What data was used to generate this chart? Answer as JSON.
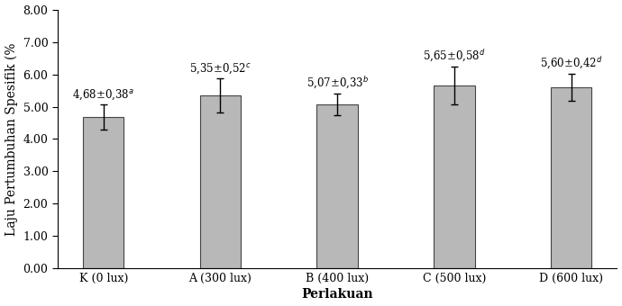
{
  "categories": [
    "K (0 lux)",
    "A (300 lux)",
    "B (400 lux)",
    "C (500 lux)",
    "D (600 lux)"
  ],
  "values": [
    4.68,
    5.35,
    5.07,
    5.65,
    5.6
  ],
  "errors": [
    0.38,
    0.52,
    0.33,
    0.58,
    0.42
  ],
  "labels": [
    "4,68±0,38",
    "5,35±0,52",
    "5,07±0,33",
    "5,65±0,58",
    "5,60±0,42"
  ],
  "superscripts": [
    "a",
    "c",
    "b",
    "d",
    "d"
  ],
  "bar_color": "#b8b8b8",
  "bar_edgecolor": "#444444",
  "ylabel": "Laju Pertumbuhan Spesifik (%",
  "xlabel": "Perlakuan",
  "ylim": [
    0.0,
    8.0
  ],
  "yticks": [
    0.0,
    1.0,
    2.0,
    3.0,
    4.0,
    5.0,
    6.0,
    7.0,
    8.0
  ],
  "background_color": "#ffffff",
  "bar_width": 0.35,
  "label_fontsize": 8.5,
  "axis_label_fontsize": 10,
  "tick_fontsize": 9
}
